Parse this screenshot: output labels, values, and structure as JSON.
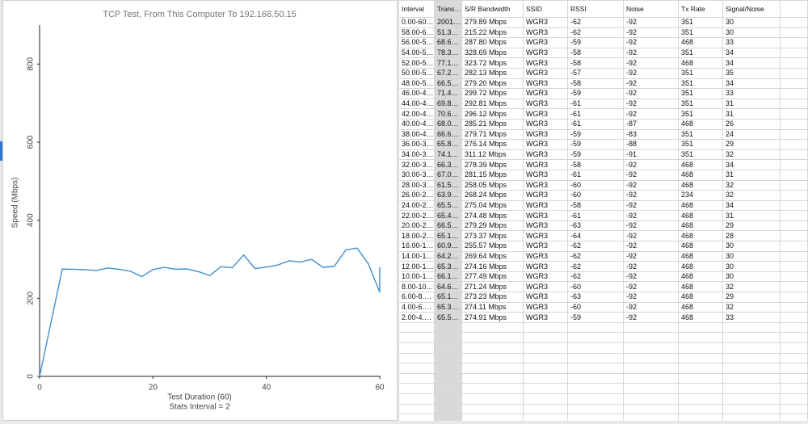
{
  "chart_data": {
    "type": "line",
    "title": "TCP Test,  From This Computer To 192.168.50.15",
    "x_label": "Test Duration (60)",
    "x_sublabel": "Stats Interval = 2",
    "y_label": "Speed (Mbps)",
    "x": [
      0,
      4,
      6,
      8,
      10,
      12,
      14,
      16,
      18,
      20,
      22,
      24,
      26,
      28,
      30,
      32,
      34,
      36,
      38,
      40,
      42,
      44,
      46,
      48,
      50,
      52,
      54,
      56,
      58,
      60,
      60
    ],
    "values": [
      0,
      274.91,
      274.11,
      273.23,
      271.24,
      277.49,
      274.16,
      269.64,
      255.57,
      273.37,
      279.29,
      274.48,
      275.04,
      268.24,
      258.05,
      281.15,
      278.39,
      311.12,
      276.14,
      279.71,
      285.21,
      296.12,
      292.81,
      299.72,
      279.2,
      282.13,
      323.72,
      328.69,
      287.8,
      215.22,
      279.89
    ],
    "color": "#4b96d1",
    "xlim": [
      0,
      60
    ],
    "xticks": [
      0,
      20,
      40,
      60
    ],
    "ylim": [
      0,
      900
    ],
    "yticks": [
      0,
      200,
      400,
      600,
      800
    ]
  },
  "table": {
    "columns": [
      "Interval",
      "Trans…",
      "S/R Bandwidth",
      "SSID",
      "RSSI",
      "Noise",
      "Tx Rate",
      "Signal/Noise"
    ],
    "rows": [
      [
        "0.00-60…",
        "2001…",
        "279.89 Mbps",
        "WGR3",
        "-62",
        "-92",
        "351",
        "30"
      ],
      [
        "58.00-6…",
        "51.3…",
        "215.22 Mbps",
        "WGR3",
        "-62",
        "-92",
        "351",
        "30"
      ],
      [
        "56.00-5…",
        "68.6…",
        "287.80 Mbps",
        "WGR3",
        "-59",
        "-92",
        "468",
        "33"
      ],
      [
        "54.00-5…",
        "78.3…",
        "328.69 Mbps",
        "WGR3",
        "-58",
        "-92",
        "351",
        "34"
      ],
      [
        "52.00-5…",
        "77.1…",
        "323.72 Mbps",
        "WGR3",
        "-58",
        "-92",
        "468",
        "34"
      ],
      [
        "50.00-5…",
        "67.2…",
        "282.13 Mbps",
        "WGR3",
        "-57",
        "-92",
        "351",
        "35"
      ],
      [
        "48.00-5…",
        "66.5…",
        "279.20 Mbps",
        "WGR3",
        "-58",
        "-92",
        "351",
        "34"
      ],
      [
        "46.00-4…",
        "71.4…",
        "299.72 Mbps",
        "WGR3",
        "-59",
        "-92",
        "351",
        "33"
      ],
      [
        "44.00-4…",
        "69.8…",
        "292.81 Mbps",
        "WGR3",
        "-61",
        "-92",
        "351",
        "31"
      ],
      [
        "42.00-4…",
        "70.6…",
        "296.12 Mbps",
        "WGR3",
        "-61",
        "-92",
        "351",
        "31"
      ],
      [
        "40.00-4…",
        "68.0…",
        "285.21 Mbps",
        "WGR3",
        "-61",
        "-87",
        "468",
        "26"
      ],
      [
        "38.00-4…",
        "66.6…",
        "279.71 Mbps",
        "WGR3",
        "-59",
        "-83",
        "351",
        "24"
      ],
      [
        "36.00-3…",
        "65.8…",
        "276.14 Mbps",
        "WGR3",
        "-59",
        "-88",
        "351",
        "29"
      ],
      [
        "34.00-3…",
        "74.1…",
        "311.12 Mbps",
        "WGR3",
        "-59",
        "-91",
        "351",
        "32"
      ],
      [
        "32.00-3…",
        "66.3…",
        "278.39 Mbps",
        "WGR3",
        "-58",
        "-92",
        "468",
        "34"
      ],
      [
        "30.00-3…",
        "67.0…",
        "281.15 Mbps",
        "WGR3",
        "-61",
        "-92",
        "468",
        "31"
      ],
      [
        "28.00-3…",
        "61.5…",
        "258.05 Mbps",
        "WGR3",
        "-60",
        "-92",
        "468",
        "32"
      ],
      [
        "26.00-2…",
        "63.9…",
        "268.24 Mbps",
        "WGR3",
        "-60",
        "-92",
        "234",
        "32"
      ],
      [
        "24.00-2…",
        "65.5…",
        "275.04 Mbps",
        "WGR3",
        "-58",
        "-92",
        "468",
        "34"
      ],
      [
        "22.00-2…",
        "65.4…",
        "274.48 Mbps",
        "WGR3",
        "-61",
        "-92",
        "468",
        "31"
      ],
      [
        "20.00-2…",
        "66.5…",
        "279.29 Mbps",
        "WGR3",
        "-63",
        "-92",
        "468",
        "29"
      ],
      [
        "18.00-2…",
        "65.1…",
        "273.37 Mbps",
        "WGR3",
        "-64",
        "-92",
        "468",
        "28"
      ],
      [
        "16.00-1…",
        "60.9…",
        "255.57 Mbps",
        "WGR3",
        "-62",
        "-92",
        "468",
        "30"
      ],
      [
        "14.00-1…",
        "64.2…",
        "269.64 Mbps",
        "WGR3",
        "-62",
        "-92",
        "468",
        "30"
      ],
      [
        "12.00-1…",
        "65.3…",
        "274.16 Mbps",
        "WGR3",
        "-62",
        "-92",
        "468",
        "30"
      ],
      [
        "10.00-1…",
        "66.1…",
        "277.49 Mbps",
        "WGR3",
        "-62",
        "-92",
        "468",
        "30"
      ],
      [
        "8.00-10.…",
        "64.6…",
        "271.24 Mbps",
        "WGR3",
        "-60",
        "-92",
        "468",
        "32"
      ],
      [
        "6.00-8.…",
        "65.1…",
        "273.23 Mbps",
        "WGR3",
        "-63",
        "-92",
        "468",
        "29"
      ],
      [
        "4.00-6.…",
        "65.3…",
        "274.11 Mbps",
        "WGR3",
        "-60",
        "-92",
        "468",
        "32"
      ],
      [
        "2.00-4.…",
        "65.5…",
        "274.91 Mbps",
        "WGR3",
        "-59",
        "-92",
        "468",
        "33"
      ]
    ]
  }
}
